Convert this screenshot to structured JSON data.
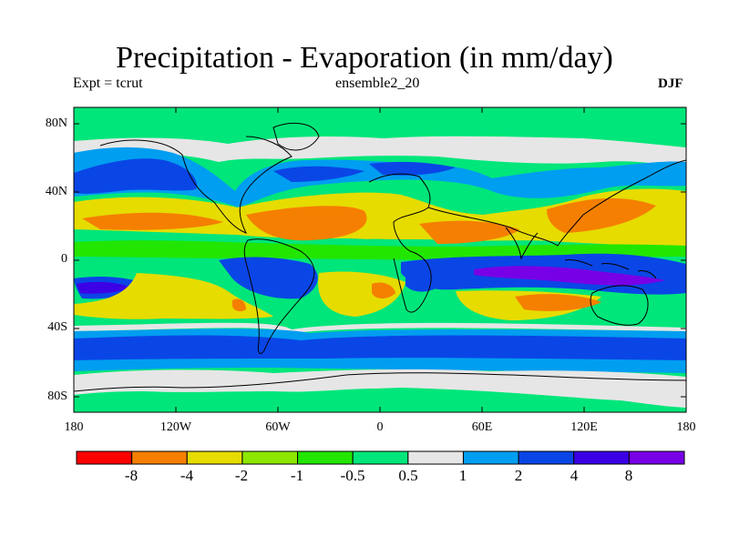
{
  "title": "Precipitation - Evaporation (in mm/day)",
  "subtitle_left": "Expt = tcrut",
  "subtitle_center": "ensemble2_20",
  "subtitle_right": "DJF",
  "axes": {
    "y_labels": [
      "80N",
      "40N",
      "0",
      "40S",
      "80S"
    ],
    "x_labels": [
      "180",
      "120W",
      "60W",
      "0",
      "60E",
      "120E",
      "180"
    ]
  },
  "colorbar": {
    "colors": [
      "#ff0000",
      "#f57f00",
      "#e6dc00",
      "#8ce600",
      "#22e600",
      "#00e67a",
      "#e6e6e6",
      "#009ef0",
      "#0a46e6",
      "#3c00e6",
      "#7800e6"
    ],
    "labels": [
      "-8",
      "-4",
      "-2",
      "-1",
      "-0.5",
      "0.5",
      "1",
      "2",
      "4",
      "8"
    ]
  },
  "map_colors": {
    "background": "#00e67a",
    "ice": "#e6e6e6",
    "light_blue": "#009ef0",
    "blue": "#0a46e6",
    "deep_blue": "#3c00e6",
    "purple": "#7800e6",
    "yellow": "#e6dc00",
    "orange": "#f57f00",
    "lime": "#8ce600",
    "green": "#22e600",
    "coast": "#000000"
  }
}
